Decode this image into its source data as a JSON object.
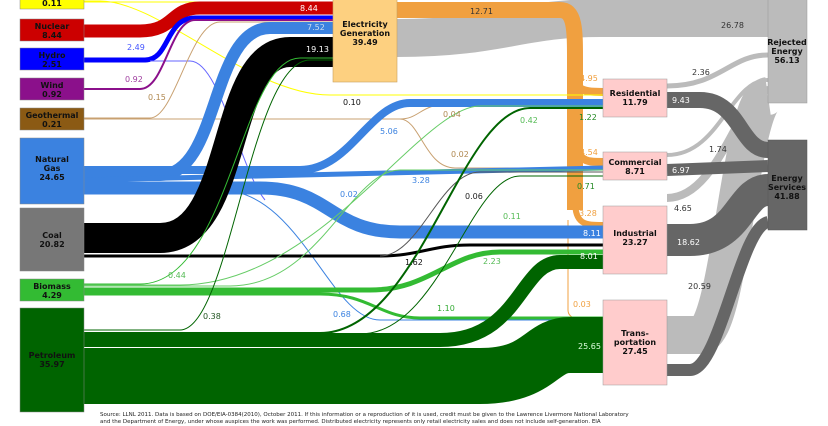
{
  "colors": {
    "solar": "#ffff00",
    "nuclear": "#cc0000",
    "hydro": "#0000ff",
    "wind": "#8b108b",
    "geothermal": "#8b5a14",
    "natural_gas": "#3b82e0",
    "coal": "#000000",
    "biomass": "#33bb33",
    "petroleum": "#006400",
    "electricity": "#f0a040",
    "sector": "#ffcccc",
    "rejected": "#bbbbbb",
    "services": "#666666"
  },
  "sources": {
    "solar": {
      "value": "0.11"
    },
    "nuclear": {
      "name": "Nuclear",
      "value": "8.44"
    },
    "hydro": {
      "name": "Hydro",
      "value": "2.51"
    },
    "wind": {
      "name": "Wind",
      "value": "0.92"
    },
    "geothermal": {
      "name": "Geothermal",
      "value": "0.21"
    },
    "natural_gas": {
      "name1": "Natural",
      "name2": "Gas",
      "value": "24.65"
    },
    "coal": {
      "name": "Coal",
      "value": "20.82"
    },
    "biomass": {
      "name": "Biomass",
      "value": "4.29"
    },
    "petroleum": {
      "name": "Petroleum",
      "value": "35.97"
    }
  },
  "electricity": {
    "name1": "Electricity",
    "name2": "Generation",
    "value": "39.49"
  },
  "sectors": {
    "residential": {
      "name": "Residential",
      "value": "11.79"
    },
    "commercial": {
      "name": "Commercial",
      "value": "8.71"
    },
    "industrial": {
      "name": "Industrial",
      "value": "23.27"
    },
    "transportation": {
      "name1": "Trans-",
      "name2": "portation",
      "value": "27.45"
    }
  },
  "sinks": {
    "rejected": {
      "name1": "Rejected",
      "name2": "Energy",
      "value": "56.13"
    },
    "services": {
      "name1": "Energy",
      "name2": "Services",
      "value": "41.88"
    }
  },
  "flows": {
    "nuclear_elec": "8.44",
    "hydro_elec": "2.49",
    "wind_elec": "0.92",
    "geo_elec": "0.15",
    "solar_res": "0.10",
    "gas_elec": "7.52",
    "coal_elec": "19.13",
    "geo_res": "0.04",
    "geo_com": "0.02",
    "gas_res": "5.06",
    "gas_com": "3.28",
    "gas_ind": "8.11",
    "gas_trans": "0.68",
    "gas_other": "0.02",
    "coal_com": "0.06",
    "coal_ind": "1.62",
    "bio_elec": "0.44",
    "bio_res": "0.42",
    "bio_com": "0.11",
    "bio_ind": "2.23",
    "bio_trans": "1.10",
    "pet_elec": "0.38",
    "pet_res": "1.22",
    "pet_com": "0.71",
    "pet_ind": "8.01",
    "pet_trans": "25.65",
    "elec_out": "12.71",
    "elec_res": "4.95",
    "elec_com": "4.54",
    "elec_ind": "3.28",
    "elec_trans": "0.03",
    "elec_rej": "26.78",
    "res_rej": "2.36",
    "res_serv": "9.43",
    "com_rej": "1.74",
    "com_serv": "6.97",
    "ind_rej": "4.65",
    "ind_serv": "18.62",
    "trans_rej": "20.59",
    "trans_serv": "6.86"
  },
  "footer": {
    "line1": "Source: LLNL 2011. Data is based on DOE/EIA-0384(2010), October 2011. If this information or a reproduction of it is used, credit must be given to the Lawrence Livermore National Laboratory",
    "line2": "and the Department of Energy, under whose auspices the work was performed. Distributed electricity represents only retail electricity sales and does not include self-generation. EIA"
  }
}
